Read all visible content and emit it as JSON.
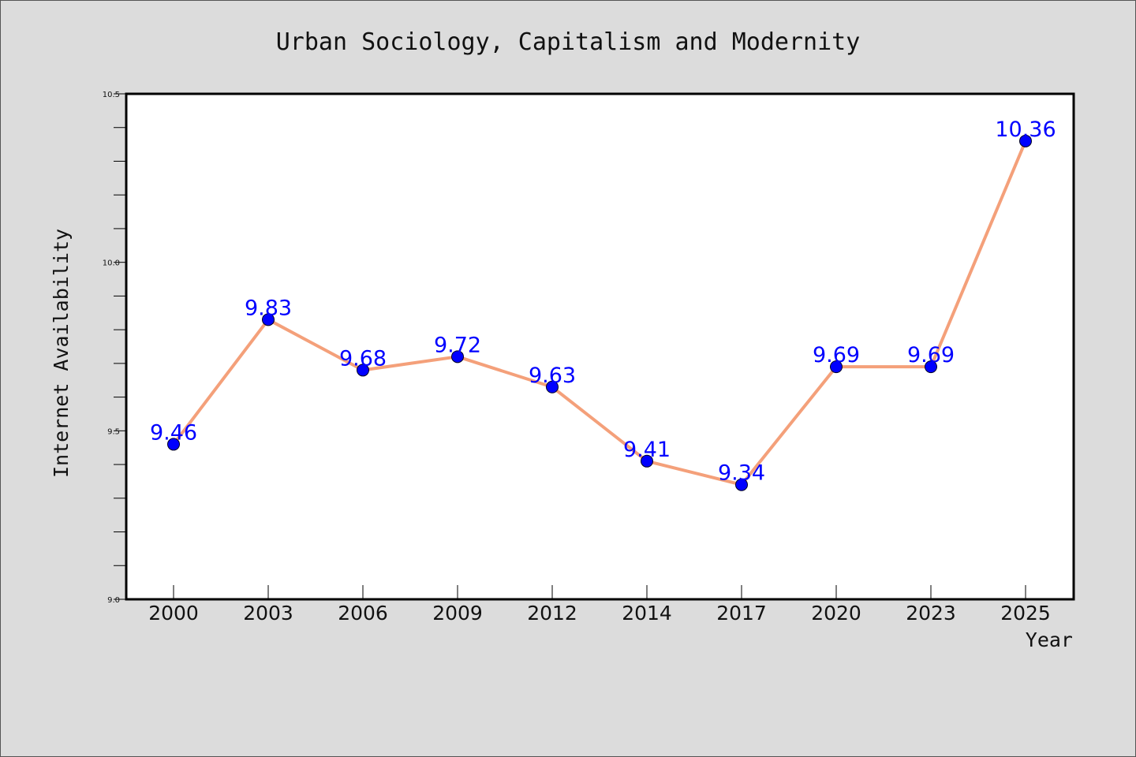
{
  "chart_data": {
    "type": "line",
    "title": "Urban Sociology, Capitalism and Modernity",
    "xlabel": "Year",
    "ylabel": "Internet Availability",
    "categories": [
      "2000",
      "2003",
      "2006",
      "2009",
      "2012",
      "2014",
      "2017",
      "2020",
      "2023",
      "2025"
    ],
    "values": [
      9.46,
      9.83,
      9.68,
      9.72,
      9.63,
      9.41,
      9.34,
      9.69,
      9.69,
      10.36
    ],
    "data_labels": [
      "9.46",
      "9.83",
      "9.68",
      "9.72",
      "9.63",
      "9.41",
      "9.34",
      "9.69",
      "9.69",
      "10.36"
    ],
    "ylim": [
      9.0,
      10.5
    ],
    "yticks": [
      9.0,
      9.5,
      10.0,
      10.5
    ],
    "ytick_labels": [
      "9.0",
      "9.5",
      "10.0",
      "10.5"
    ],
    "y_minor_step": 0.1,
    "grid": false,
    "legend": "none",
    "colors": {
      "line": "#f4a07a",
      "marker": "#0000ff",
      "label": "#0000ff",
      "plot_background": "#ffffff",
      "figure_background": "#dcdcdc"
    }
  }
}
